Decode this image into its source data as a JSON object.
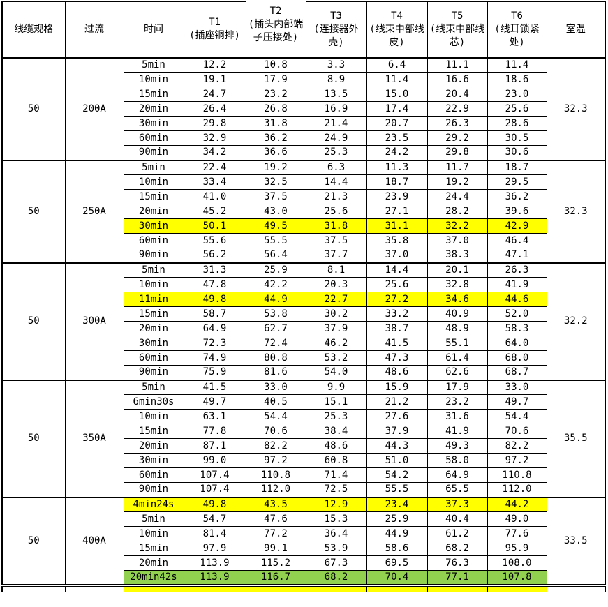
{
  "colors": {
    "highlight_yellow": "#FFFF00",
    "highlight_green": "#92D050",
    "border": "#000000",
    "background": "#FFFFFF"
  },
  "table": {
    "columns": [
      {
        "label": "线缆规格"
      },
      {
        "label": "过流"
      },
      {
        "label": "时间"
      },
      {
        "code": "T1",
        "desc": "(插座铜排)"
      },
      {
        "code": "T2",
        "desc": "(插头内部端子压接处)"
      },
      {
        "code": "T3",
        "desc": "(连接器外壳)"
      },
      {
        "code": "T4",
        "desc": "(线束中部线皮)"
      },
      {
        "code": "T5",
        "desc": "(线束中部线芯)"
      },
      {
        "code": "T6",
        "desc": "(线耳锁紧处)"
      },
      {
        "label": "室温"
      }
    ],
    "groups": [
      {
        "spec": "50",
        "current": "200A",
        "room": "32.3",
        "double_bottom": false,
        "rows": [
          {
            "time": "5min",
            "values": [
              "12.2",
              "10.8",
              "3.3",
              "6.4",
              "11.1",
              "11.4"
            ],
            "hl": ""
          },
          {
            "time": "10min",
            "values": [
              "19.1",
              "17.9",
              "8.9",
              "11.4",
              "16.6",
              "18.6"
            ],
            "hl": ""
          },
          {
            "time": "15min",
            "values": [
              "24.7",
              "23.2",
              "13.5",
              "15.0",
              "20.4",
              "23.0"
            ],
            "hl": ""
          },
          {
            "time": "20min",
            "values": [
              "26.4",
              "26.8",
              "16.9",
              "17.4",
              "22.9",
              "25.6"
            ],
            "hl": ""
          },
          {
            "time": "30min",
            "values": [
              "29.8",
              "31.8",
              "21.4",
              "20.7",
              "26.3",
              "28.6"
            ],
            "hl": ""
          },
          {
            "time": "60min",
            "values": [
              "32.9",
              "36.2",
              "24.9",
              "23.5",
              "29.2",
              "30.5"
            ],
            "hl": ""
          },
          {
            "time": "90min",
            "values": [
              "34.2",
              "36.6",
              "25.3",
              "24.2",
              "29.8",
              "30.6"
            ],
            "hl": ""
          }
        ]
      },
      {
        "spec": "50",
        "current": "250A",
        "room": "32.3",
        "double_bottom": false,
        "rows": [
          {
            "time": "5min",
            "values": [
              "22.4",
              "19.2",
              "6.3",
              "11.3",
              "11.7",
              "18.7"
            ],
            "hl": ""
          },
          {
            "time": "10min",
            "values": [
              "33.4",
              "32.5",
              "14.4",
              "18.7",
              "19.2",
              "29.5"
            ],
            "hl": ""
          },
          {
            "time": "15min",
            "values": [
              "41.0",
              "37.5",
              "21.3",
              "23.9",
              "24.4",
              "36.2"
            ],
            "hl": ""
          },
          {
            "time": "20min",
            "values": [
              "45.2",
              "43.0",
              "25.6",
              "27.1",
              "28.2",
              "39.6"
            ],
            "hl": ""
          },
          {
            "time": "30min",
            "values": [
              "50.1",
              "49.5",
              "31.8",
              "31.1",
              "32.2",
              "42.9"
            ],
            "hl": "highlight_yellow"
          },
          {
            "time": "60min",
            "values": [
              "55.6",
              "55.5",
              "37.5",
              "35.8",
              "37.0",
              "46.4"
            ],
            "hl": ""
          },
          {
            "time": "90min",
            "values": [
              "56.2",
              "56.4",
              "37.7",
              "37.0",
              "38.3",
              "47.1"
            ],
            "hl": ""
          }
        ]
      },
      {
        "spec": "50",
        "current": "300A",
        "room": "32.2",
        "double_bottom": false,
        "rows": [
          {
            "time": "5min",
            "values": [
              "31.3",
              "25.9",
              "8.1",
              "14.4",
              "20.1",
              "26.3"
            ],
            "hl": ""
          },
          {
            "time": "10min",
            "values": [
              "47.8",
              "42.2",
              "20.3",
              "25.6",
              "32.8",
              "41.9"
            ],
            "hl": ""
          },
          {
            "time": "11min",
            "values": [
              "49.8",
              "44.9",
              "22.7",
              "27.2",
              "34.6",
              "44.6"
            ],
            "hl": "highlight_yellow"
          },
          {
            "time": "15min",
            "values": [
              "58.7",
              "53.8",
              "30.2",
              "33.2",
              "40.9",
              "52.0"
            ],
            "hl": ""
          },
          {
            "time": "20min",
            "values": [
              "64.9",
              "62.7",
              "37.9",
              "38.7",
              "48.9",
              "58.3"
            ],
            "hl": ""
          },
          {
            "time": "30min",
            "values": [
              "72.3",
              "72.4",
              "46.2",
              "41.5",
              "55.1",
              "64.0"
            ],
            "hl": ""
          },
          {
            "time": "60min",
            "values": [
              "74.9",
              "80.8",
              "53.2",
              "47.3",
              "61.4",
              "68.0"
            ],
            "hl": ""
          },
          {
            "time": "90min",
            "values": [
              "75.9",
              "81.6",
              "54.0",
              "48.6",
              "62.6",
              "68.7"
            ],
            "hl": ""
          }
        ]
      },
      {
        "spec": "50",
        "current": "350A",
        "room": "35.5",
        "double_bottom": false,
        "rows": [
          {
            "time": "5min",
            "values": [
              "41.5",
              "33.0",
              "9.9",
              "15.9",
              "17.9",
              "33.0"
            ],
            "hl": ""
          },
          {
            "time": "6min30s",
            "values": [
              "49.7",
              "40.5",
              "15.1",
              "21.2",
              "23.2",
              "49.7"
            ],
            "hl": ""
          },
          {
            "time": "10min",
            "values": [
              "63.1",
              "54.4",
              "25.3",
              "27.6",
              "31.6",
              "54.4"
            ],
            "hl": ""
          },
          {
            "time": "15min",
            "values": [
              "77.8",
              "70.6",
              "38.4",
              "37.9",
              "41.9",
              "70.6"
            ],
            "hl": ""
          },
          {
            "time": "20min",
            "values": [
              "87.1",
              "82.2",
              "48.6",
              "44.3",
              "49.3",
              "82.2"
            ],
            "hl": ""
          },
          {
            "time": "30min",
            "values": [
              "99.0",
              "97.2",
              "60.8",
              "51.0",
              "58.0",
              "97.2"
            ],
            "hl": ""
          },
          {
            "time": "60min",
            "values": [
              "107.4",
              "110.8",
              "71.4",
              "54.2",
              "64.9",
              "110.8"
            ],
            "hl": ""
          },
          {
            "time": "90min",
            "values": [
              "107.4",
              "112.0",
              "72.5",
              "55.5",
              "65.5",
              "112.0"
            ],
            "hl": ""
          }
        ]
      },
      {
        "spec": "50",
        "current": "400A",
        "room": "33.5",
        "double_bottom": true,
        "rows": [
          {
            "time": "4min24s",
            "values": [
              "49.8",
              "43.5",
              "12.9",
              "23.4",
              "37.3",
              "44.2"
            ],
            "hl": "highlight_yellow"
          },
          {
            "time": "5min",
            "values": [
              "54.7",
              "47.6",
              "15.3",
              "25.9",
              "40.4",
              "49.0"
            ],
            "hl": ""
          },
          {
            "time": "10min",
            "values": [
              "81.4",
              "77.2",
              "36.4",
              "44.9",
              "61.2",
              "77.6"
            ],
            "hl": ""
          },
          {
            "time": "15min",
            "values": [
              "97.9",
              "99.1",
              "53.9",
              "58.6",
              "68.2",
              "95.9"
            ],
            "hl": ""
          },
          {
            "time": "20min",
            "values": [
              "113.9",
              "115.2",
              "67.3",
              "69.5",
              "76.3",
              "108.0"
            ],
            "hl": ""
          },
          {
            "time": "20min42s",
            "values": [
              "113.9",
              "116.7",
              "68.2",
              "70.4",
              "77.1",
              "107.8"
            ],
            "hl": "highlight_green"
          }
        ]
      }
    ],
    "partial_row": {
      "visible": true,
      "hl": "highlight_yellow",
      "highlighted_columns": 7
    }
  }
}
